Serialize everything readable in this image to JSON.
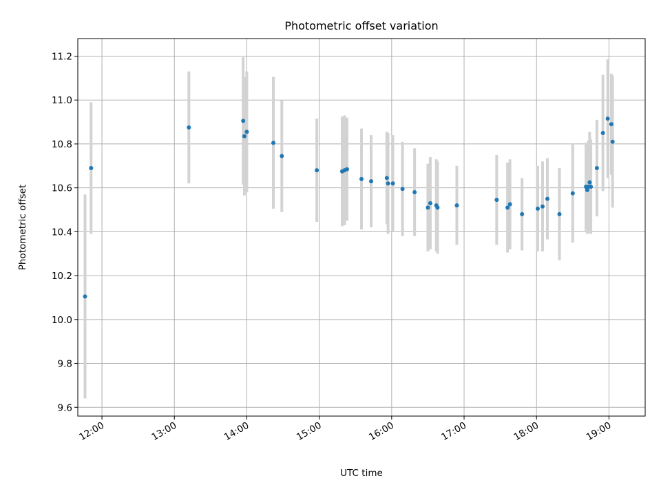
{
  "chart_data": {
    "type": "scatter",
    "title": "Photometric offset variation",
    "xlabel": "UTC time",
    "ylabel": "Photometric offset",
    "xlim": [
      "11:40",
      "19:30"
    ],
    "ylim": [
      9.56,
      11.28
    ],
    "grid": true,
    "x_ticks": [
      "12:00",
      "13:00",
      "14:00",
      "15:00",
      "16:00",
      "17:00",
      "18:00",
      "19:00"
    ],
    "y_ticks": [
      9.6,
      9.8,
      10.0,
      10.2,
      10.4,
      10.6,
      10.8,
      11.0,
      11.2
    ],
    "colors": {
      "points": "#1f77b4",
      "errorbars": "#d3d3d3",
      "grid": "#b0b0b0"
    },
    "series": [
      {
        "x": [
          "11:46",
          "11:51",
          "13:12",
          "13:57",
          "13:58",
          "14:00",
          "14:22",
          "14:29",
          "14:58",
          "15:19",
          "15:21",
          "15:23",
          "15:35",
          "15:43",
          "15:56",
          "15:57",
          "16:01",
          "16:09",
          "16:19",
          "16:30",
          "16:32",
          "16:37",
          "16:38",
          "16:54",
          "17:27",
          "17:36",
          "17:38",
          "17:48",
          "18:01",
          "18:05",
          "18:09",
          "18:19",
          "18:30",
          "18:41",
          "18:42",
          "18:43",
          "18:44",
          "18:45",
          "18:50",
          "18:55",
          "18:59",
          "19:02",
          "19:03"
        ],
        "y": [
          10.105,
          10.69,
          10.875,
          10.905,
          10.835,
          10.855,
          10.805,
          10.745,
          10.68,
          10.675,
          10.68,
          10.685,
          10.64,
          10.63,
          10.645,
          10.62,
          10.62,
          10.595,
          10.58,
          10.51,
          10.53,
          10.52,
          10.51,
          10.52,
          10.545,
          10.51,
          10.525,
          10.48,
          10.505,
          10.515,
          10.55,
          10.48,
          10.575,
          10.605,
          10.59,
          10.605,
          10.625,
          10.605,
          10.69,
          10.85,
          10.915,
          10.89,
          10.81
        ],
        "error": [
          0.465,
          0.3,
          0.255,
          0.29,
          0.27,
          0.275,
          0.3,
          0.255,
          0.235,
          0.25,
          0.25,
          0.235,
          0.23,
          0.21,
          0.21,
          0.23,
          0.22,
          0.215,
          0.2,
          0.2,
          0.21,
          0.21,
          0.21,
          0.18,
          0.205,
          0.205,
          0.205,
          0.165,
          0.195,
          0.205,
          0.185,
          0.21,
          0.225,
          0.2,
          0.2,
          0.21,
          0.23,
          0.215,
          0.22,
          0.265,
          0.27,
          0.23,
          0.3
        ]
      }
    ]
  }
}
